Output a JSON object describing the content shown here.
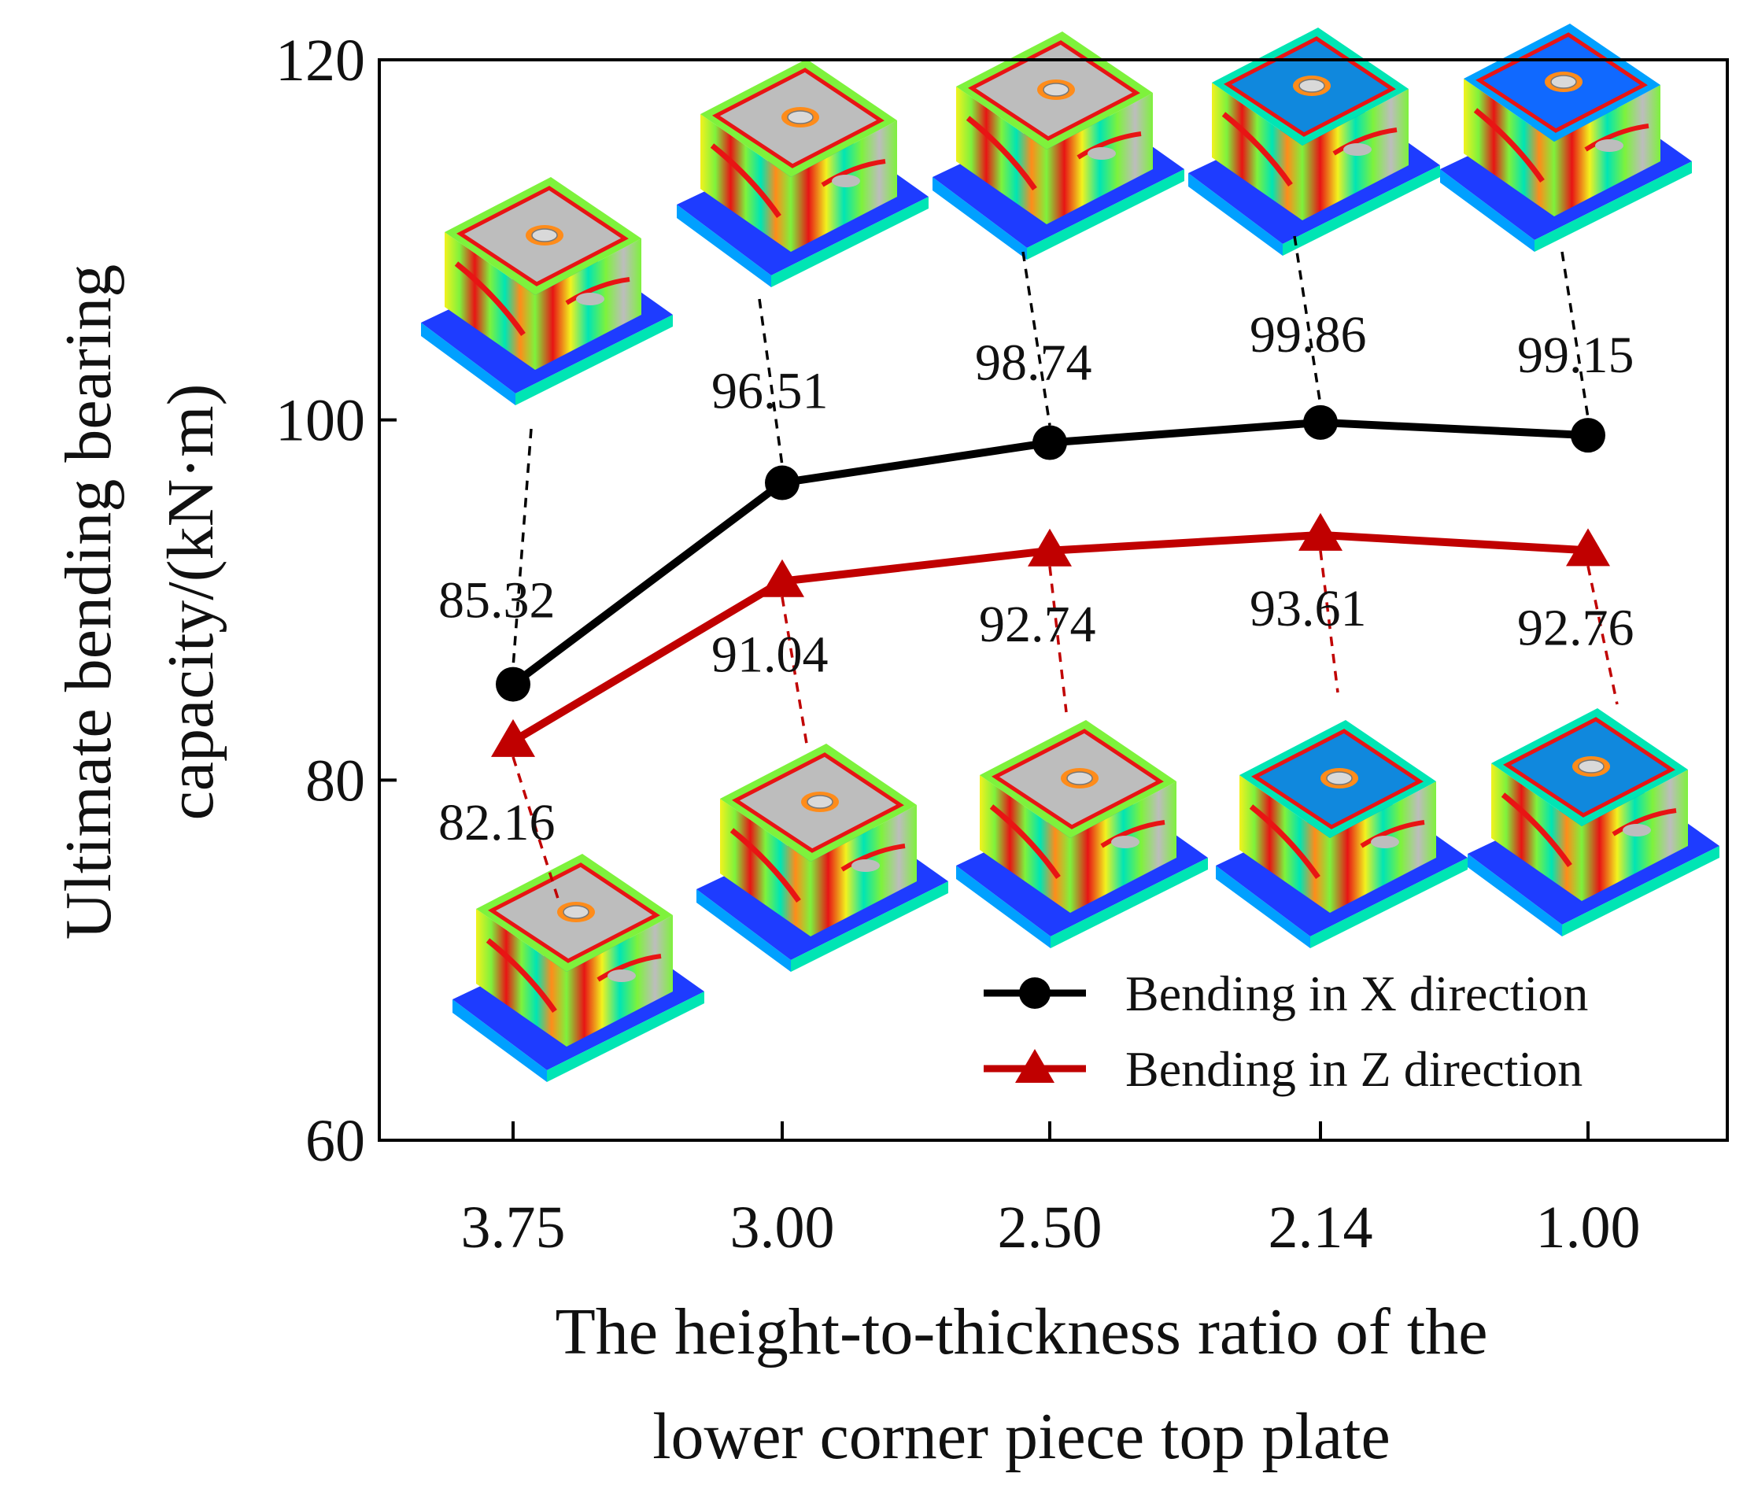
{
  "chart_data": {
    "type": "line",
    "title": "",
    "xlabel_lines": [
      "The height-to-thickness ratio of the",
      "lower corner piece top plate"
    ],
    "ylabel_lines": [
      "Ultimate bending bearing",
      "capacity/(kN·m)"
    ],
    "categories": [
      "3.75",
      "3.00",
      "2.50",
      "2.14",
      "1.00"
    ],
    "ylim": [
      60,
      120
    ],
    "yticks": [
      60,
      80,
      100,
      120
    ],
    "grid": false,
    "legend_position": "bottom-right",
    "series": [
      {
        "name": "Bending in X direction",
        "marker": "circle",
        "color": "#000000",
        "values": [
          85.32,
          96.51,
          98.74,
          99.86,
          99.15
        ],
        "labels": [
          "85.32",
          "96.51",
          "98.74",
          "99.86",
          "99.15"
        ]
      },
      {
        "name": "Bending in Z direction",
        "marker": "triangle",
        "color": "#c00000",
        "values": [
          82.16,
          91.04,
          92.74,
          93.61,
          92.76
        ],
        "labels": [
          "82.16",
          "91.04",
          "92.74",
          "93.61",
          "92.76"
        ]
      }
    ]
  },
  "contour_colors": [
    "#1e3cff",
    "#00a0ff",
    "#00e5b4",
    "#7ef23c",
    "#f2f21e",
    "#ff8c1a",
    "#e81414",
    "#bdbdbd"
  ]
}
